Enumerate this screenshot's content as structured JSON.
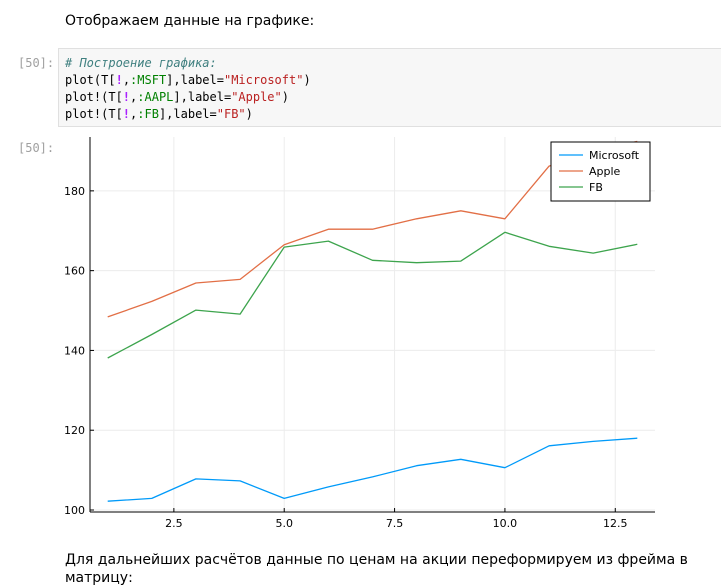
{
  "notebook": {
    "intro_text": "Отображаем данные на графике:",
    "outro_text": "Для дальнейших расчётов данные по ценам на акции переформируем из фрейма в матрицу:",
    "input_prompt": "[50]:",
    "output_prompt": "[50]:",
    "code": {
      "comment": "# Построение графика:",
      "line1": {
        "a": "plot(T[",
        "bang": "!",
        "b": ",",
        "sym": ":MSFT",
        "c": "],label=",
        "str": "\"Microsoft\"",
        "d": ")"
      },
      "line2": {
        "a": "plot!(T[",
        "bang": "!",
        "b": ",",
        "sym": ":AAPL",
        "c": "],label=",
        "str": "\"Apple\"",
        "d": ")"
      },
      "line3": {
        "a": "plot!(T[",
        "bang": "!",
        "b": ",",
        "sym": ":FB",
        "c": "],label=",
        "str": "\"FB\"",
        "d": ")"
      }
    }
  },
  "chart_data": {
    "type": "line",
    "title": "",
    "xlabel": "",
    "ylabel": "",
    "xlim": [
      0.6,
      13.4
    ],
    "ylim": [
      99.5,
      193.5
    ],
    "xticks": [
      2.5,
      5.0,
      7.5,
      10.0,
      12.5
    ],
    "xtick_labels": [
      "2.5",
      "5.0",
      "7.5",
      "10.0",
      "12.5"
    ],
    "yticks": [
      100,
      120,
      140,
      160,
      180
    ],
    "ytick_labels": [
      "100",
      "120",
      "140",
      "160",
      "180"
    ],
    "grid": true,
    "legend_position": "top-right",
    "x": [
      1,
      2,
      3,
      4,
      5,
      6,
      7,
      8,
      9,
      10,
      11,
      12,
      13
    ],
    "series": [
      {
        "name": "Microsoft",
        "color": "#009af9",
        "values": [
          102.2,
          102.9,
          107.8,
          107.3,
          102.9,
          105.8,
          108.3,
          111.1,
          112.7,
          110.6,
          116.1,
          117.2,
          118.0
        ]
      },
      {
        "name": "Apple",
        "color": "#e26f46",
        "values": [
          148.4,
          152.3,
          156.9,
          157.8,
          166.5,
          170.4,
          170.4,
          173.0,
          175.0,
          173.0,
          186.2,
          190.0,
          192.4
        ]
      },
      {
        "name": "FB",
        "color": "#3da44d",
        "values": [
          138.1,
          144.0,
          150.1,
          149.1,
          165.9,
          167.4,
          162.6,
          162.0,
          162.4,
          169.6,
          166.1,
          164.4,
          166.6
        ]
      }
    ]
  }
}
